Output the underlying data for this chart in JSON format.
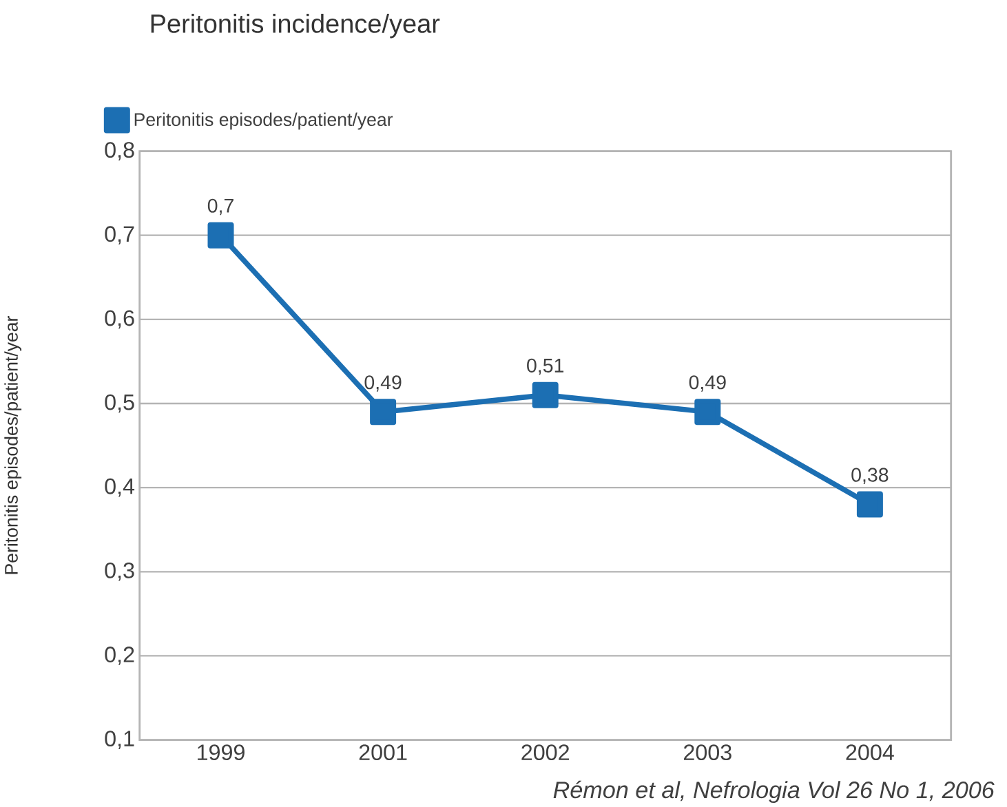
{
  "chart_data": {
    "type": "line",
    "title": "Peritonitis incidence/year",
    "ylabel": "Peritonitis episodes/patient/year",
    "categories": [
      "1999",
      "2001",
      "2002",
      "2003",
      "2004"
    ],
    "series": [
      {
        "name": "Peritonitis episodes/patient/year",
        "color": "#1c6fb3",
        "values": [
          0.7,
          0.49,
          0.51,
          0.49,
          0.38
        ],
        "value_labels": [
          "0,7",
          "0,49",
          "0,51",
          "0,49",
          "0,38"
        ]
      }
    ],
    "ylim": [
      0.1,
      0.8
    ],
    "yticks": [
      {
        "value": 0.1,
        "label": "0,1"
      },
      {
        "value": 0.2,
        "label": "0,2"
      },
      {
        "value": 0.3,
        "label": "0,3"
      },
      {
        "value": 0.4,
        "label": "0,4"
      },
      {
        "value": 0.5,
        "label": "0,5"
      },
      {
        "value": 0.6,
        "label": "0,6"
      },
      {
        "value": 0.7,
        "label": "0,7"
      },
      {
        "value": 0.8,
        "label": "0,8"
      }
    ],
    "grid": "y",
    "legend": "top left",
    "marker": "square",
    "line_style": "solid",
    "annotations": [
      "Rémon et al, Nefrologia Vol 26 No 1, 2006"
    ]
  }
}
